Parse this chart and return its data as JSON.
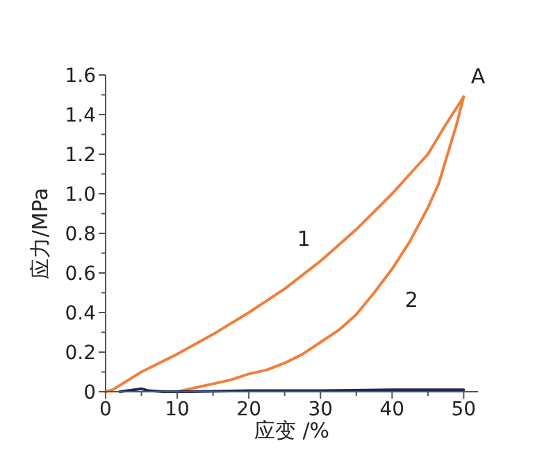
{
  "chart_data": {
    "type": "line",
    "xlabel": "应变 /%",
    "ylabel": "应力/MPa",
    "xlim": [
      0,
      52
    ],
    "ylim": [
      0,
      1.6
    ],
    "xticks": [
      0,
      {
        "value": 5,
        "label": null
      },
      10,
      {
        "value": 15,
        "label": null
      },
      20,
      {
        "value": 25,
        "label": null
      },
      30,
      {
        "value": 35,
        "label": null
      },
      40,
      {
        "value": 45,
        "label": null
      },
      50
    ],
    "yticks": [
      0,
      {
        "value": 0.1,
        "label": null
      },
      0.2,
      {
        "value": 0.3,
        "label": null
      },
      0.4,
      {
        "value": 0.5,
        "label": null
      },
      0.6,
      {
        "value": 0.7,
        "label": null
      },
      0.8,
      {
        "value": 0.9,
        "label": null
      },
      "1.0",
      {
        "value": 1.1,
        "label": null
      },
      1.2,
      {
        "value": 1.3,
        "label": null
      },
      1.4,
      {
        "value": 1.5,
        "label": null
      },
      1.6
    ],
    "series": [
      {
        "name": "1",
        "color": "#f07f3c",
        "x": [
          0,
          1,
          5,
          10,
          15,
          20,
          25,
          30,
          35,
          40,
          42.5,
          45,
          47.5,
          50
        ],
        "values": [
          0,
          0.01,
          0.1,
          0.19,
          0.29,
          0.4,
          0.52,
          0.66,
          0.82,
          1.0,
          1.1,
          1.2,
          1.35,
          1.49
        ]
      },
      {
        "name": "2",
        "color": "#f07f3c",
        "x": [
          50,
          49,
          48,
          46.5,
          45,
          42.5,
          40,
          37.5,
          35,
          32.5,
          30,
          27.5,
          25,
          22.5,
          20,
          17.5,
          15,
          12.5,
          10
        ],
        "values": [
          1.49,
          1.35,
          1.23,
          1.05,
          0.93,
          0.76,
          0.62,
          0.5,
          0.39,
          0.31,
          0.25,
          0.19,
          0.145,
          0.11,
          0.09,
          0.06,
          0.04,
          0.02,
          0
        ]
      },
      {
        "color": "#1f2a5a",
        "x": [
          2,
          4,
          5,
          6,
          8,
          12,
          20,
          30,
          40,
          45,
          50
        ],
        "values": [
          0,
          0.01,
          0.015,
          0.005,
          0,
          0,
          0.005,
          0.005,
          0.01,
          0.01,
          0.01
        ]
      }
    ],
    "annotations": [
      "A"
    ],
    "grid": false,
    "marker": "none",
    "line_style": "solid"
  }
}
